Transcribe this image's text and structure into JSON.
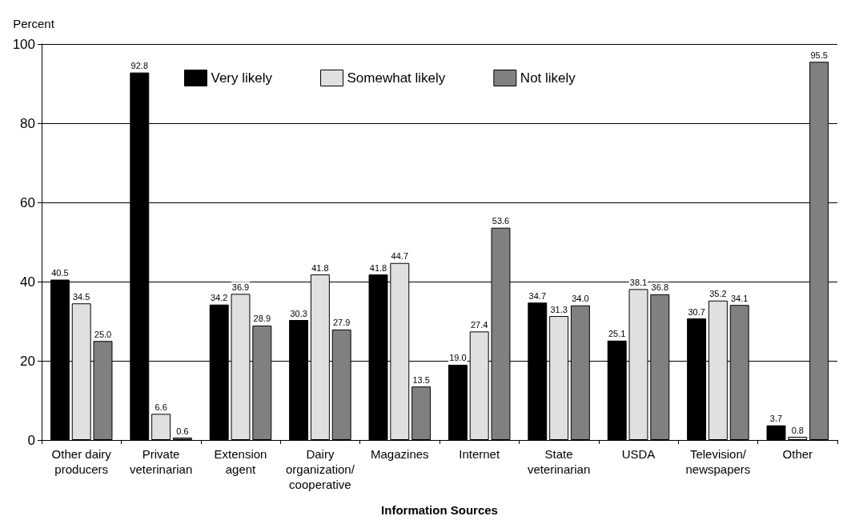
{
  "chart_data": {
    "type": "bar",
    "xlabel": "Information Sources",
    "ylabel": "Percent",
    "categories": [
      "Other dairy\nproducers",
      "Private\nveterinarian",
      "Extension\nagent",
      "Dairy\norganization/\ncooperative",
      "Magazines",
      "Internet",
      "State\nveterinarian",
      "USDA",
      "Television/\nnewspapers",
      "Other"
    ],
    "series": [
      {
        "name": "Very likely",
        "color": "#000000",
        "values": [
          40.5,
          92.8,
          34.2,
          30.3,
          41.8,
          19.0,
          34.7,
          25.1,
          30.7,
          3.7
        ],
        "value_labels": [
          "40.5",
          "92.8",
          "34.2",
          "30.3",
          "41.8",
          "19.0",
          "34.7",
          "25.1",
          "30.7",
          "3.7"
        ]
      },
      {
        "name": "Somewhat likely",
        "color": "#e0e0e0",
        "values": [
          34.5,
          6.6,
          36.9,
          41.8,
          44.7,
          27.4,
          31.3,
          38.1,
          35.2,
          0.8
        ],
        "value_labels": [
          "34.5",
          "6.6",
          "36.9",
          "41.8",
          "44.7",
          "27.4",
          "31.3",
          "38.1",
          "35.2",
          "0.8"
        ]
      },
      {
        "name": "Not likely",
        "color": "#808080",
        "values": [
          25.0,
          0.6,
          28.9,
          27.9,
          13.5,
          53.6,
          34.0,
          36.8,
          34.1,
          95.5
        ],
        "value_labels": [
          "25.0",
          "0.6",
          "28.9",
          "27.9",
          "13.5",
          "53.6",
          "34.0",
          "36.8",
          "34.1",
          "95.5"
        ]
      }
    ],
    "ylim": [
      0,
      100
    ],
    "yticks": [
      0,
      20,
      40,
      60,
      80,
      100
    ],
    "grid": "y",
    "legend": "top"
  }
}
